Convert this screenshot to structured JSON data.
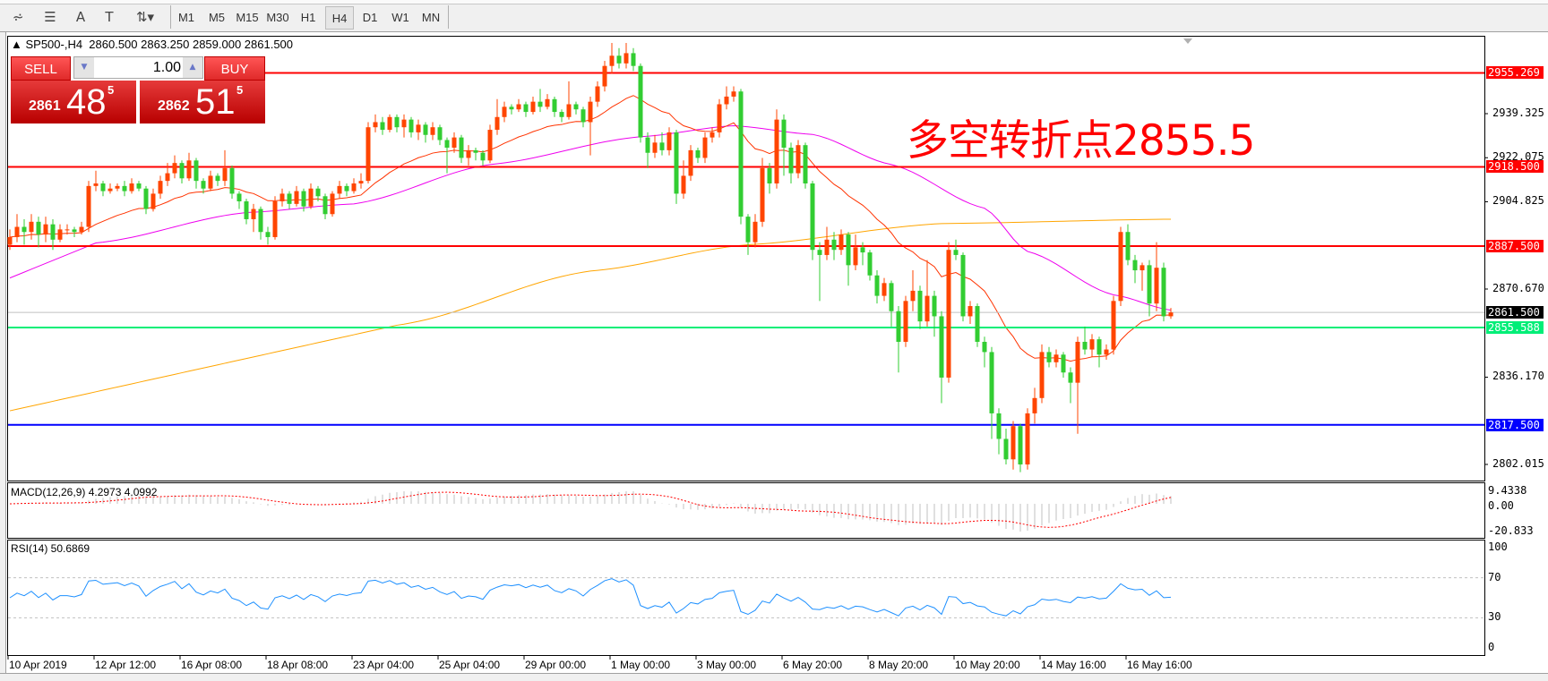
{
  "toolbar": {
    "tools": [
      {
        "name": "fibonacci-expansion-icon",
        "glyph": "⩫"
      },
      {
        "name": "fibonacci-fan-icon",
        "glyph": "☰"
      },
      {
        "name": "text-icon",
        "glyph": "A"
      },
      {
        "name": "text-label-icon",
        "glyph": "T"
      },
      {
        "name": "arrows-icon",
        "glyph": "⇅▾"
      }
    ],
    "periods": [
      "M1",
      "M5",
      "M15",
      "M30",
      "H1",
      "H4",
      "D1",
      "W1",
      "MN"
    ],
    "active_period": "H4"
  },
  "chart": {
    "header": "SP500-,H4  2860.500 2863.250 2859.000 2861.500",
    "annotation": "多空转折点2855.5",
    "annotation_color": "#ff0000"
  },
  "trade_panel": {
    "sell_label": "SELL",
    "buy_label": "BUY",
    "lot": "1.00",
    "sell_price": {
      "small": "2861",
      "big": "48",
      "sup": "5"
    },
    "buy_price": {
      "small": "2862",
      "big": "51",
      "sup": "5"
    }
  },
  "chart_data": {
    "type": "candlestick",
    "symbol": "SP500-",
    "timeframe": "H4",
    "up_color": "#ff4500",
    "down_color": "#32cd32",
    "first_open": 2888,
    "close": [
      2891,
      2895,
      2893,
      2897,
      2892,
      2896,
      2890,
      2894,
      2894,
      2893,
      2895,
      2911,
      2912,
      2909,
      2910,
      2911,
      2909,
      2912,
      2910,
      2902,
      2908,
      2913,
      2916,
      2920,
      2914,
      2921,
      2913,
      2910,
      2915,
      2913,
      2918,
      2908,
      2905,
      2898,
      2902,
      2893,
      2891,
      2905,
      2908,
      2904,
      2909,
      2903,
      2910,
      2907,
      2900,
      2908,
      2911,
      2909,
      2912,
      2913,
      2934,
      2936,
      2933,
      2938,
      2934,
      2937,
      2932,
      2935,
      2931,
      2934,
      2929,
      2926,
      2930,
      2922,
      2925,
      2924,
      2921,
      2933,
      2938,
      2942,
      2941,
      2943,
      2940,
      2944,
      2942,
      2945,
      2940,
      2938,
      2943,
      2941,
      2936,
      2944,
      2950,
      2958,
      2962,
      2959,
      2963,
      2958,
      2930,
      2924,
      2928,
      2925,
      2932,
      2908,
      2915,
      2925,
      2922,
      2930,
      2932,
      2943,
      2946,
      2948,
      2899,
      2889,
      2897,
      2918,
      2912,
      2937,
      2926,
      2916,
      2927,
      2912,
      2886,
      2884,
      2890,
      2886,
      2892,
      2880,
      2887,
      2885,
      2876,
      2868,
      2873,
      2862,
      2850,
      2866,
      2870,
      2858,
      2868,
      2860,
      2836,
      2886,
      2884,
      2860,
      2864,
      2850,
      2846,
      2822,
      2812,
      2804,
      2817,
      2802,
      2822,
      2828,
      2846,
      2842,
      2845,
      2838,
      2834,
      2850,
      2847,
      2851,
      2845,
      2847,
      2866,
      2893,
      2882,
      2878,
      2880,
      2865,
      2879,
      2860,
      2861.5
    ],
    "high": [
      2894,
      2900,
      2898,
      2900,
      2899,
      2899,
      2898,
      2896,
      2896,
      2895,
      2897,
      2913,
      2917,
      2913,
      2912,
      2912,
      2913,
      2914,
      2913,
      2911,
      2910,
      2915,
      2920,
      2923,
      2921,
      2924,
      2922,
      2914,
      2917,
      2916,
      2925,
      2919,
      2909,
      2906,
      2904,
      2903,
      2895,
      2907,
      2910,
      2909,
      2911,
      2910,
      2912,
      2911,
      2908,
      2909,
      2913,
      2912,
      2914,
      2916,
      2936,
      2939,
      2938,
      2939,
      2939,
      2939,
      2938,
      2937,
      2936,
      2936,
      2935,
      2930,
      2932,
      2931,
      2927,
      2926,
      2925,
      2935,
      2945,
      2944,
      2943,
      2945,
      2944,
      2946,
      2949,
      2947,
      2946,
      2941,
      2952,
      2944,
      2942,
      2946,
      2952,
      2960,
      2967,
      2965,
      2967,
      2965,
      2959,
      2932,
      2931,
      2932,
      2934,
      2933,
      2921,
      2927,
      2926,
      2932,
      2934,
      2945,
      2950,
      2950,
      2949,
      2900,
      2900,
      2922,
      2920,
      2941,
      2939,
      2928,
      2929,
      2928,
      2913,
      2889,
      2895,
      2893,
      2894,
      2893,
      2892,
      2889,
      2886,
      2878,
      2875,
      2874,
      2864,
      2868,
      2878,
      2872,
      2882,
      2870,
      2862,
      2889,
      2890,
      2885,
      2866,
      2865,
      2852,
      2848,
      2824,
      2816,
      2819,
      2818,
      2824,
      2832,
      2849,
      2848,
      2847,
      2846,
      2840,
      2852,
      2856,
      2853,
      2852,
      2849,
      2868,
      2895,
      2896,
      2884,
      2881,
      2882,
      2889,
      2881,
      2863.25
    ],
    "low": [
      2886,
      2889,
      2888,
      2890,
      2887,
      2889,
      2886,
      2889,
      2892,
      2891,
      2892,
      2893,
      2909,
      2907,
      2908,
      2909,
      2907,
      2908,
      2909,
      2900,
      2901,
      2906,
      2911,
      2914,
      2912,
      2913,
      2910,
      2908,
      2909,
      2911,
      2911,
      2906,
      2902,
      2896,
      2893,
      2890,
      2888,
      2890,
      2903,
      2902,
      2903,
      2901,
      2902,
      2905,
      2898,
      2899,
      2906,
      2907,
      2908,
      2910,
      2912,
      2932,
      2931,
      2932,
      2932,
      2930,
      2930,
      2929,
      2928,
      2929,
      2927,
      2916,
      2924,
      2920,
      2919,
      2921,
      2919,
      2920,
      2931,
      2936,
      2939,
      2940,
      2938,
      2939,
      2940,
      2941,
      2938,
      2936,
      2937,
      2939,
      2934,
      2923,
      2942,
      2948,
      2955,
      2957,
      2957,
      2956,
      2928,
      2918,
      2922,
      2923,
      2923,
      2904,
      2906,
      2913,
      2920,
      2920,
      2928,
      2930,
      2941,
      2944,
      2896,
      2884,
      2887,
      2895,
      2908,
      2910,
      2915,
      2912,
      2914,
      2910,
      2882,
      2866,
      2882,
      2882,
      2884,
      2872,
      2878,
      2880,
      2874,
      2865,
      2866,
      2856,
      2838,
      2848,
      2862,
      2855,
      2856,
      2852,
      2826,
      2834,
      2882,
      2858,
      2857,
      2848,
      2840,
      2812,
      2806,
      2802,
      2800,
      2799,
      2800,
      2818,
      2826,
      2840,
      2840,
      2836,
      2826,
      2814,
      2845,
      2844,
      2840,
      2843,
      2845,
      2864,
      2880,
      2873,
      2870,
      2860,
      2862,
      2858,
      2859
    ],
    "ma_fast_color": "#ff3300",
    "ma_mid": {
      "color": "#ee00ee",
      "points": [
        [
          0,
          2875
        ],
        [
          12,
          2888.7
        ],
        [
          33,
          2900.6
        ],
        [
          48,
          2904
        ],
        [
          67,
          2919.4
        ],
        [
          88,
          2930.3
        ],
        [
          101,
          2934.6
        ],
        [
          112,
          2931.2
        ],
        [
          123,
          2919.4
        ],
        [
          136,
          2902.3
        ],
        [
          142,
          2885.4
        ],
        [
          154,
          2868.4
        ],
        [
          162,
          2862.4
        ]
      ]
    },
    "ma_slow": {
      "color": "#ffa500",
      "points": [
        [
          0,
          2823
        ],
        [
          54,
          2856.5
        ],
        [
          81,
          2877.7
        ],
        [
          103,
          2888
        ],
        [
          130,
          2896.3
        ],
        [
          162,
          2898
        ]
      ]
    },
    "price_axis": {
      "ticks": [
        "2939.325",
        "2922.075",
        "2904.825",
        "2870.670",
        "2836.170",
        "2802.015"
      ],
      "values": [
        2939.325,
        2922.075,
        2904.825,
        2870.67,
        2836.17,
        2802.015
      ],
      "range": [
        2795.7,
        2969.45
      ]
    },
    "levels": [
      {
        "value": 2955.269,
        "label": "2955.269",
        "color": "#ff0000"
      },
      {
        "value": 2918.5,
        "label": "2918.500",
        "color": "#ff0000"
      },
      {
        "value": 2887.5,
        "label": "2887.500",
        "color": "#ff0000"
      },
      {
        "value": 2855.588,
        "label": "2855.588",
        "color": "#00ee77"
      },
      {
        "value": 2817.5,
        "label": "2817.500",
        "color": "#0000ff"
      }
    ],
    "bid": {
      "value": 2861.5,
      "label": "2861.500",
      "color": "#000000"
    },
    "time_axis": [
      "10 Apr 2019",
      "12 Apr 12:00",
      "16 Apr 08:00",
      "18 Apr 08:00",
      "23 Apr 04:00",
      "25 Apr 04:00",
      "29 Apr 00:00",
      "1 May 00:00",
      "3 May 00:00",
      "6 May 20:00",
      "8 May 20:00",
      "10 May 20:00",
      "14 May 16:00",
      "16 May 16:00"
    ],
    "macd": {
      "label": "MACD(12,26,9) 4.2973 4.0992",
      "ticks": [
        "9.4338",
        "0.00",
        "-20.833"
      ],
      "range": [
        -20.833,
        9.4338
      ],
      "hist_color": "#c0c0c0",
      "signal_color": "#ff0000"
    },
    "rsi": {
      "label": "RSI(14) 50.6869",
      "ticks": [
        "100",
        "70",
        "30",
        "0"
      ],
      "levels": [
        70,
        30
      ],
      "range": [
        0,
        100
      ],
      "color": "#1e90ff"
    }
  }
}
